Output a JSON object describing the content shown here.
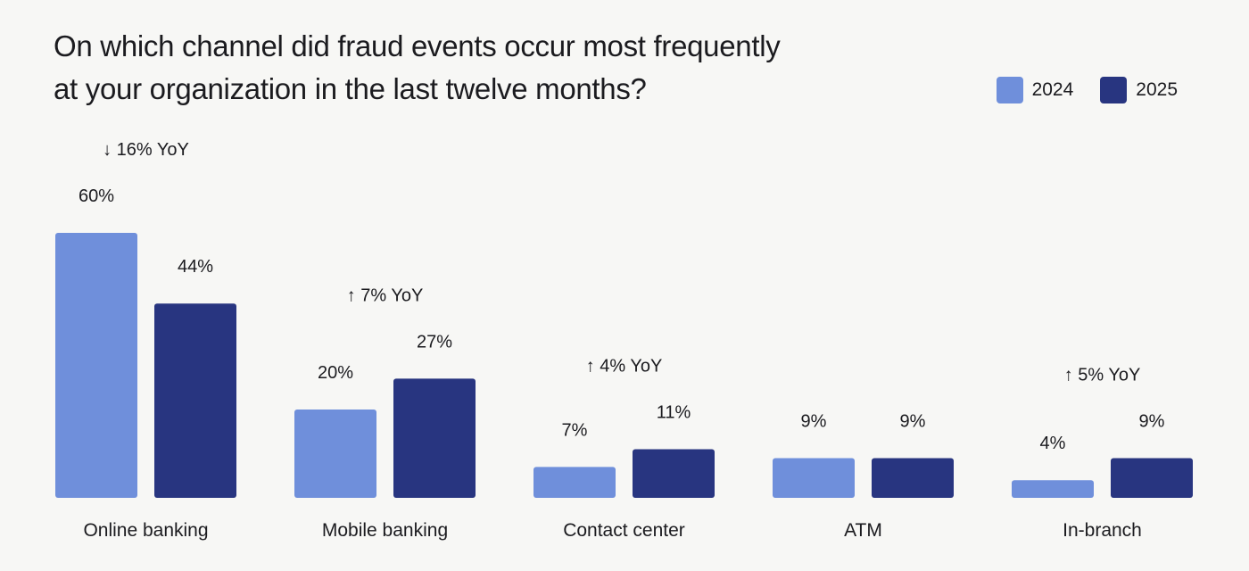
{
  "title_lines": [
    "On which channel did fraud events occur most frequently",
    "at your organization in the last twelve months?"
  ],
  "colors": {
    "y2024": "#6f8fdb",
    "y2025": "#283580"
  },
  "chart_data": {
    "type": "bar",
    "title": "On which channel did fraud events occur most frequently at your organization in the last twelve months?",
    "categories": [
      "Online banking",
      "Mobile banking",
      "Contact center",
      "ATM",
      "In-branch"
    ],
    "series": [
      {
        "name": "2024",
        "values": [
          60,
          20,
          7,
          9,
          4
        ],
        "labels": [
          "60%",
          "20%",
          "7%",
          "9%",
          "4%"
        ],
        "color": "#6f8fdb"
      },
      {
        "name": "2025",
        "values": [
          44,
          27,
          11,
          9,
          9
        ],
        "labels": [
          "44%",
          "27%",
          "11%",
          "9%",
          "9%"
        ],
        "color": "#283580"
      }
    ],
    "annotations": [
      "↓ 16% YoY",
      "↑ 7% YoY",
      "↑ 4% YoY",
      "",
      "↑ 5% YoY"
    ],
    "ylim": [
      0,
      60
    ],
    "legend": "top-right",
    "grid": false,
    "xlabel": "",
    "ylabel": ""
  }
}
